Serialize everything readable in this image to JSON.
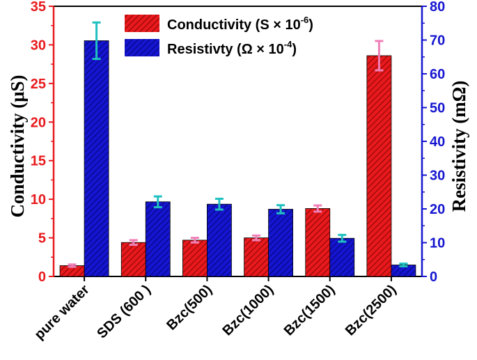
{
  "colors": {
    "left_axis": "#e8191c",
    "right_axis": "#1515d0",
    "conductivity_fill": "#e8191c",
    "resistivity_fill": "#1515d0",
    "conductivity_err": "#f080b8",
    "resistivity_err": "#20c0c0"
  },
  "chart_data": {
    "type": "bar",
    "categories": [
      "pure water",
      "SDS (600 )",
      "Bzc(500)",
      "Bzc(1000)",
      "Bzc(1500)",
      "Bzc(2500)"
    ],
    "ylabel_left": "Conductivity (μS)",
    "ylabel_right": "Resistivity (mΩ)",
    "ylim_left": [
      0,
      35
    ],
    "ylim_right": [
      0,
      80
    ],
    "yticks_left": [
      0,
      5,
      10,
      15,
      20,
      25,
      30,
      35
    ],
    "yticks_right": [
      0,
      10,
      20,
      30,
      40,
      50,
      60,
      70,
      80
    ],
    "legend_position": "top-center",
    "series": [
      {
        "name": "Conductivity (S × 10",
        "name_sup": "-6",
        "name_tail": ")",
        "axis": "left",
        "values": [
          1.4,
          4.4,
          4.7,
          5.0,
          8.8,
          28.6
        ],
        "errors": [
          0.15,
          0.3,
          0.3,
          0.3,
          0.4,
          1.9
        ],
        "pattern": "hatch"
      },
      {
        "name": "Resistivty (Ω × 10",
        "name_sup": "-4",
        "name_tail": ")",
        "axis": "right",
        "values": [
          69.8,
          22.1,
          21.4,
          19.9,
          11.3,
          3.4
        ],
        "errors": [
          5.4,
          1.6,
          1.6,
          1.2,
          1.0,
          0.4
        ],
        "pattern": "hatch"
      }
    ]
  }
}
